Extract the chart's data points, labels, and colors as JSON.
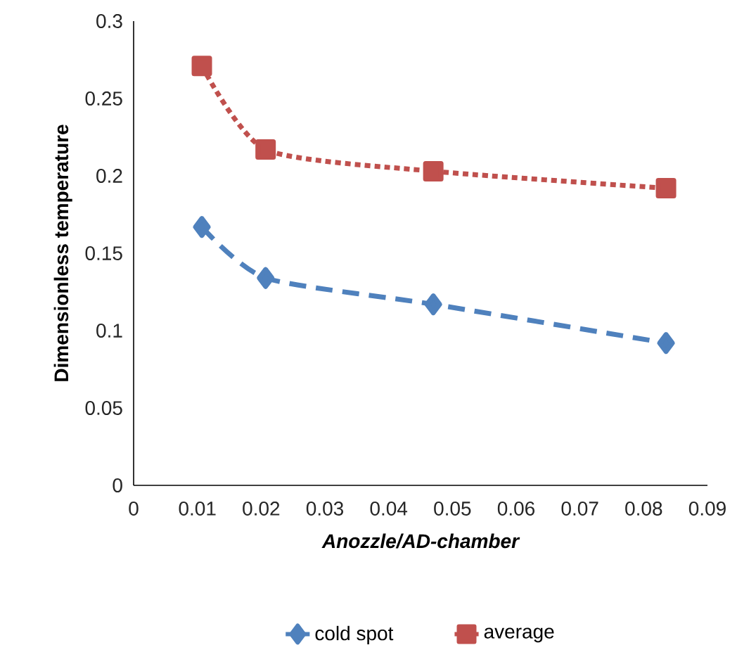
{
  "chart_data": {
    "type": "line",
    "xlabel": "Anozzle/AD-chamber",
    "ylabel": "Dimensionless temperature",
    "x": [
      0.0107,
      0.0207,
      0.047,
      0.0835
    ],
    "series": [
      {
        "name": "cold spot",
        "color": "#4f81bd",
        "values": [
          0.167,
          0.134,
          0.117,
          0.092
        ],
        "marker": "diamond",
        "line_style": "dashed"
      },
      {
        "name": "average",
        "color": "#c0504d",
        "values": [
          0.271,
          0.217,
          0.203,
          0.192
        ],
        "marker": "square",
        "line_style": "dotted"
      }
    ],
    "xlim": [
      0,
      0.09
    ],
    "xticks": [
      0,
      0.01,
      0.02,
      0.03,
      0.04,
      0.05,
      0.06,
      0.07,
      0.08,
      0.09
    ],
    "ylim": [
      0,
      0.3
    ],
    "yticks": [
      0,
      0.05,
      0.1,
      0.15,
      0.2,
      0.25,
      0.3
    ],
    "grid": false,
    "legend": "bottom"
  }
}
